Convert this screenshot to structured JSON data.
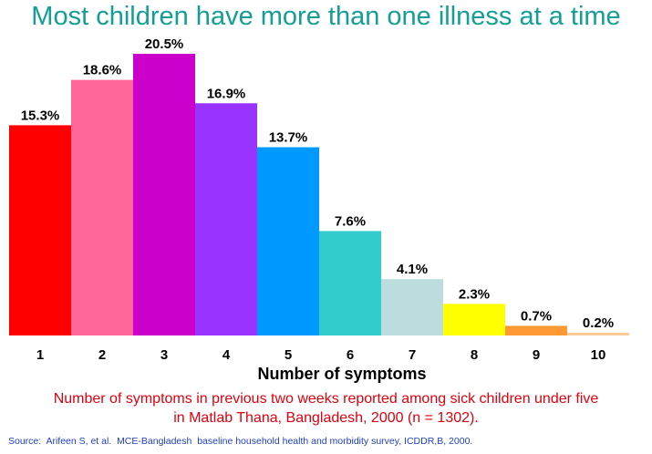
{
  "title": "Most children have more than one illness at a time",
  "chart_data": {
    "type": "bar",
    "title": "Most children have more than one illness at a time",
    "xlabel": "Number of symptoms",
    "ylabel": "",
    "categories": [
      "1",
      "2",
      "3",
      "4",
      "5",
      "6",
      "7",
      "8",
      "9",
      "10"
    ],
    "values": [
      15.3,
      18.6,
      20.5,
      16.9,
      13.7,
      7.6,
      4.1,
      2.3,
      0.7,
      0.2
    ],
    "value_labels": [
      "15.3%",
      "18.6%",
      "20.5%",
      "16.9%",
      "13.7%",
      "7.6%",
      "4.1%",
      "2.3%",
      "0.7%",
      "0.2%"
    ],
    "colors": [
      "#ff0000",
      "#ff6699",
      "#cc00cc",
      "#9933ff",
      "#0099ff",
      "#33cccc",
      "#bbdddd",
      "#ffff00",
      "#ff9933",
      "#ffcc99"
    ],
    "ylim": [
      0,
      20.5
    ],
    "grid": false,
    "legend": "none"
  },
  "caption": {
    "line1": "Number of symptoms in previous two weeks reported among sick children under five",
    "line2": "in Matlab Thana, Bangladesh, 2000 (n = 1302)."
  },
  "source": "Source:  Arifeen S, et al.  MCE-Bangladesh  baseline household health and morbidity survey, ICDDR,B, 2000."
}
